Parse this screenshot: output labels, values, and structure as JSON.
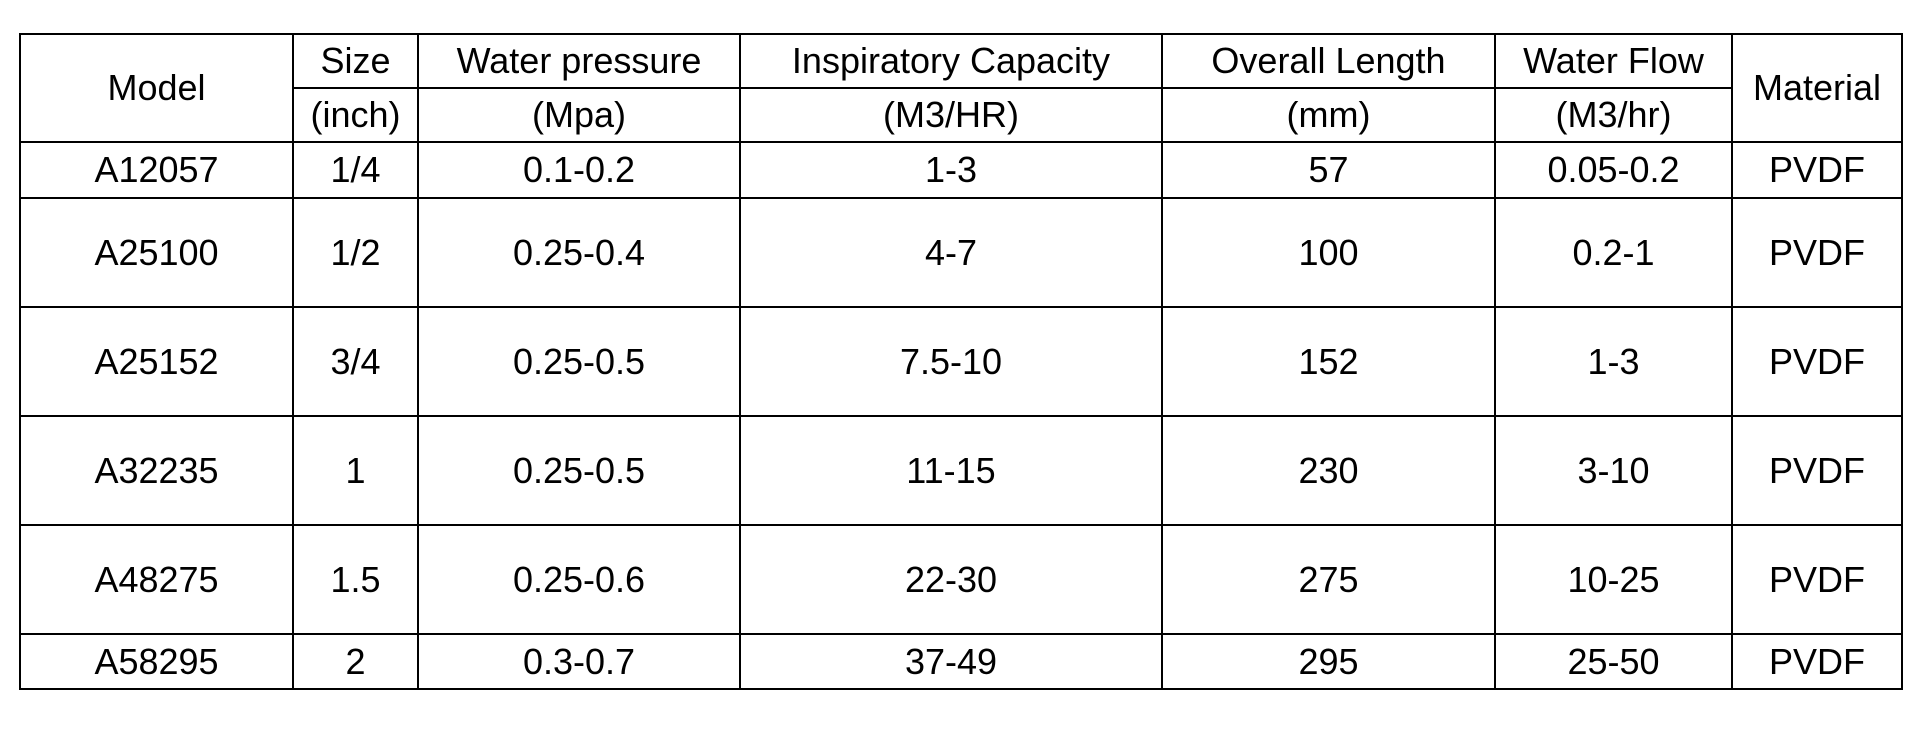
{
  "table": {
    "headers": {
      "model": "Model",
      "size": "Size",
      "size_unit": "(inch)",
      "water_pressure": "Water pressure",
      "water_pressure_unit": "(Mpa)",
      "inspiratory_capacity": "Inspiratory Capacity",
      "inspiratory_capacity_unit": "(M3/HR)",
      "overall_length": "Overall Length",
      "overall_length_unit": "(mm)",
      "water_flow": "Water Flow",
      "water_flow_unit": "(M3/hr)",
      "material": "Material"
    },
    "rows": [
      {
        "model": "A12057",
        "size": "1/4",
        "water_pressure": "0.1-0.2",
        "inspiratory_capacity": "1-3",
        "overall_length": "57",
        "water_flow": "0.05-0.2",
        "material": "PVDF"
      },
      {
        "model": "A25100",
        "size": "1/2",
        "water_pressure": "0.25-0.4",
        "inspiratory_capacity": "4-7",
        "overall_length": "100",
        "water_flow": "0.2-1",
        "material": "PVDF"
      },
      {
        "model": "A25152",
        "size": "3/4",
        "water_pressure": "0.25-0.5",
        "inspiratory_capacity": "7.5-10",
        "overall_length": "152",
        "water_flow": "1-3",
        "material": "PVDF"
      },
      {
        "model": "A32235",
        "size": "1",
        "water_pressure": "0.25-0.5",
        "inspiratory_capacity": "11-15",
        "overall_length": "230",
        "water_flow": "3-10",
        "material": "PVDF"
      },
      {
        "model": "A48275",
        "size": "1.5",
        "water_pressure": "0.25-0.6",
        "inspiratory_capacity": "22-30",
        "overall_length": "275",
        "water_flow": "10-25",
        "material": "PVDF"
      },
      {
        "model": "A58295",
        "size": "2",
        "water_pressure": "0.3-0.7",
        "inspiratory_capacity": "37-49",
        "overall_length": "295",
        "water_flow": "25-50",
        "material": "PVDF"
      }
    ]
  }
}
